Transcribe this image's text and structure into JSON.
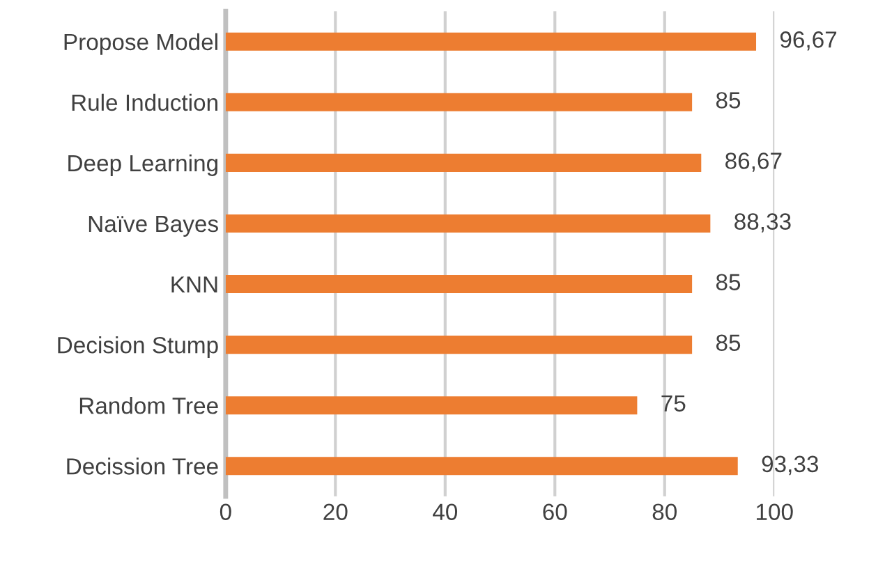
{
  "chart_data": {
    "type": "bar",
    "orientation": "horizontal",
    "categories": [
      "Propose Model",
      "Rule Induction",
      "Deep Learning",
      "Naïve Bayes",
      "KNN",
      "Decision Stump",
      "Random Tree",
      "Decission Tree"
    ],
    "values": [
      96.67,
      85,
      86.67,
      88.33,
      85,
      85,
      75,
      93.33
    ],
    "value_labels": [
      "96,67",
      "85",
      "86,67",
      "88,33",
      "85",
      "85",
      "75",
      "93,33"
    ],
    "color": "#ed7d31",
    "xlim": [
      0,
      100
    ],
    "xticks": [
      0,
      20,
      40,
      60,
      80,
      100
    ],
    "grid": "x",
    "legend": false
  }
}
